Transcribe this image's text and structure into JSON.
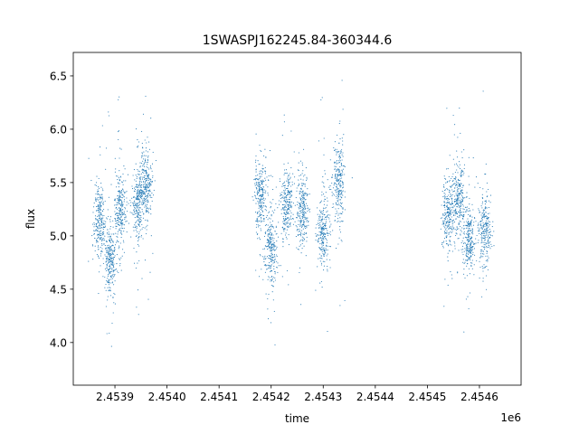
{
  "chart_data": {
    "type": "scatter",
    "title": "1SWASPJ162245.84-360344.6",
    "xlabel": "time",
    "ylabel": "flux",
    "x_offset_label": "1e6",
    "xlim": [
      2.45382,
      2.45468
    ],
    "ylim": [
      3.6,
      6.72
    ],
    "xticks": [
      2.4539,
      2.454,
      2.4541,
      2.4542,
      2.4543,
      2.4544,
      2.4545,
      2.4546
    ],
    "xtick_labels": [
      "2.4539",
      "2.4540",
      "2.4541",
      "2.4542",
      "2.4543",
      "2.4544",
      "2.4545",
      "2.4546"
    ],
    "yticks": [
      4.0,
      4.5,
      5.0,
      5.5,
      6.0,
      6.5
    ],
    "ytick_labels": [
      "4.0",
      "4.5",
      "5.0",
      "5.5",
      "6.0",
      "6.5"
    ],
    "grid": false,
    "marker_color": "#1f77b4",
    "clusters": [
      {
        "x": 2.45387,
        "y": 5.15
      },
      {
        "x": 2.45389,
        "y": 4.78
      },
      {
        "x": 2.45391,
        "y": 5.25
      },
      {
        "x": 2.453945,
        "y": 5.3
      },
      {
        "x": 2.45396,
        "y": 5.45
      },
      {
        "x": 2.45418,
        "y": 5.4
      },
      {
        "x": 2.4542,
        "y": 4.88
      },
      {
        "x": 2.45423,
        "y": 5.3
      },
      {
        "x": 2.45426,
        "y": 5.25
      },
      {
        "x": 2.4543,
        "y": 5.05
      },
      {
        "x": 2.45433,
        "y": 5.5
      },
      {
        "x": 2.45454,
        "y": 5.2
      },
      {
        "x": 2.45456,
        "y": 5.35
      },
      {
        "x": 2.45458,
        "y": 4.95
      },
      {
        "x": 2.45461,
        "y": 5.05
      }
    ]
  }
}
